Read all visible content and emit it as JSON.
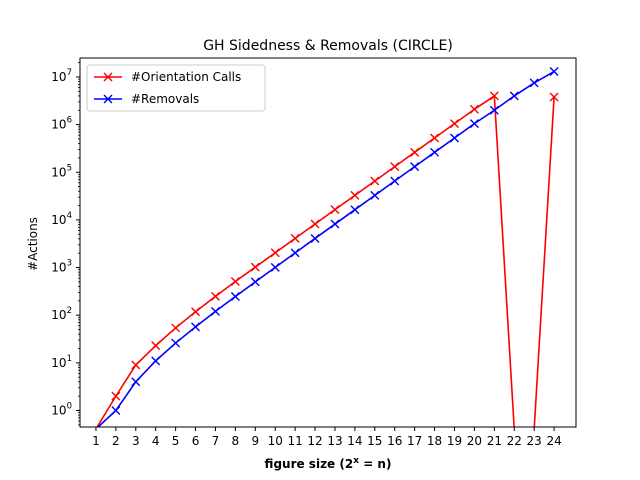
{
  "chart_data": {
    "type": "line",
    "title": "GH Sidedness & Removals (CIRCLE)",
    "xlabel_main": "figure size (2",
    "xlabel_sup": "x",
    "xlabel_tail": " = n)",
    "ylabel": "#Actions",
    "yscale": "log",
    "ylim": [
      0.45,
      25000000
    ],
    "xlim": [
      0.2,
      25.1
    ],
    "x_ticks": [
      "1",
      "2",
      "3",
      "4",
      "5",
      "6",
      "7",
      "8",
      "9",
      "10",
      "11",
      "12",
      "13",
      "14",
      "15",
      "16",
      "17",
      "18",
      "19",
      "20",
      "21",
      "22",
      "23",
      "24"
    ],
    "y_ticks": [
      {
        "base": "10",
        "exp": "0",
        "value": 1
      },
      {
        "base": "10",
        "exp": "1",
        "value": 10
      },
      {
        "base": "10",
        "exp": "2",
        "value": 100
      },
      {
        "base": "10",
        "exp": "3",
        "value": 1000
      },
      {
        "base": "10",
        "exp": "4",
        "value": 10000
      },
      {
        "base": "10",
        "exp": "5",
        "value": 100000
      },
      {
        "base": "10",
        "exp": "6",
        "value": 1000000
      },
      {
        "base": "10",
        "exp": "7",
        "value": 10000000
      }
    ],
    "legend_position": "upper-left",
    "grid": false,
    "series": [
      {
        "name": "#Orientation Calls",
        "color": "#ff0000",
        "marker": "x",
        "x": [
          1,
          2,
          3,
          4,
          5,
          6,
          7,
          8,
          9,
          10,
          11,
          12,
          13,
          14,
          15,
          16,
          17,
          18,
          19,
          20,
          21,
          22,
          23,
          24
        ],
        "y": [
          0,
          2,
          9,
          23,
          54,
          118,
          248,
          509,
          1020,
          2040,
          4096,
          8200,
          16400,
          32700,
          65500,
          131000,
          262000,
          524000,
          1049000,
          2097000,
          4000000,
          0,
          0,
          3800000
        ],
        "markers_at": [
          2,
          3,
          4,
          5,
          6,
          7,
          8,
          9,
          10,
          11,
          12,
          13,
          14,
          15,
          16,
          17,
          18,
          19,
          20,
          21,
          24
        ]
      },
      {
        "name": "#Removals",
        "color": "#0000ff",
        "marker": "x",
        "x": [
          1,
          2,
          3,
          4,
          5,
          6,
          7,
          8,
          9,
          10,
          11,
          12,
          13,
          14,
          15,
          16,
          17,
          18,
          19,
          20,
          21,
          22,
          23,
          24
        ],
        "y": [
          0,
          1,
          4,
          11,
          26,
          57,
          120,
          247,
          500,
          1010,
          2030,
          4080,
          8180,
          16370,
          32750,
          65520,
          131060,
          262130,
          524260,
          1048550,
          2000000,
          4000000,
          7500000,
          13000000
        ],
        "markers_at": [
          2,
          3,
          4,
          5,
          6,
          7,
          8,
          9,
          10,
          11,
          12,
          13,
          14,
          15,
          16,
          17,
          18,
          19,
          20,
          21,
          22,
          23,
          24
        ]
      }
    ]
  }
}
